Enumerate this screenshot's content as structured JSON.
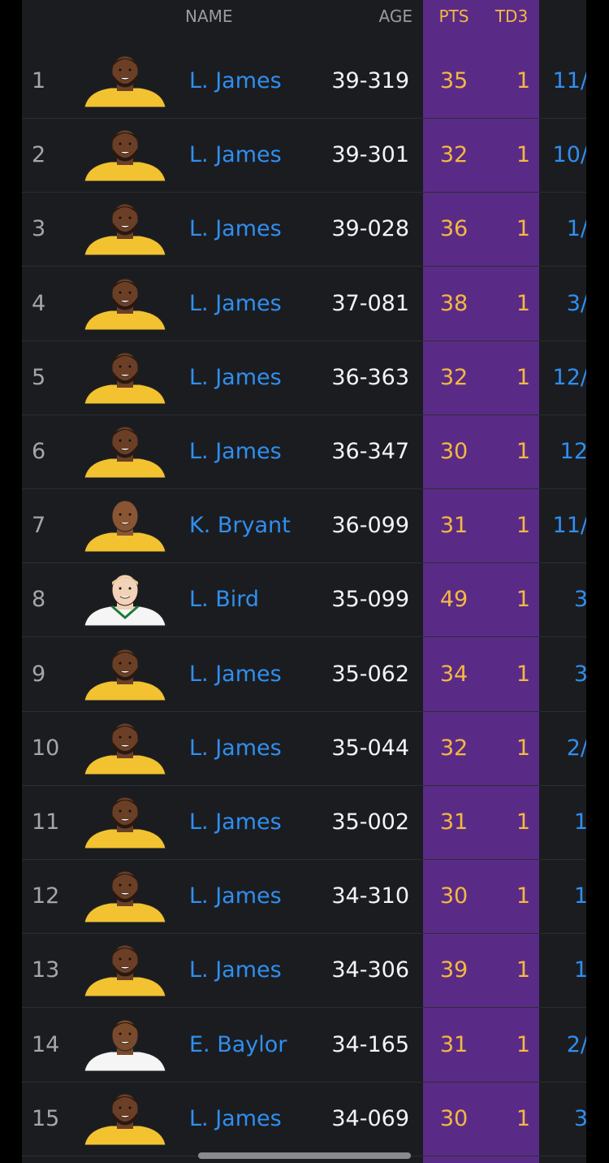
{
  "header": {
    "columns": [
      "NAME",
      "AGE",
      "PTS",
      "TD3"
    ]
  },
  "table": {
    "rows": [
      [
        1,
        "L. James",
        "39-319",
        35,
        1,
        "11/"
      ],
      [
        2,
        "L. James",
        "39-301",
        32,
        1,
        "10/"
      ],
      [
        3,
        "L. James",
        "39-028",
        36,
        1,
        "1/"
      ],
      [
        4,
        "L. James",
        "37-081",
        38,
        1,
        "3/"
      ],
      [
        5,
        "L. James",
        "36-363",
        32,
        1,
        "12/"
      ],
      [
        6,
        "L. James",
        "36-347",
        30,
        1,
        "12"
      ],
      [
        7,
        "K. Bryant",
        "36-099",
        31,
        1,
        "11/"
      ],
      [
        8,
        "L. Bird",
        "35-099",
        49,
        1,
        "3"
      ],
      [
        9,
        "L. James",
        "35-062",
        34,
        1,
        "3"
      ],
      [
        10,
        "L. James",
        "35-044",
        32,
        1,
        "2/"
      ],
      [
        11,
        "L. James",
        "35-002",
        31,
        1,
        "1"
      ],
      [
        12,
        "L. James",
        "34-310",
        30,
        1,
        "1"
      ],
      [
        13,
        "L. James",
        "34-306",
        39,
        1,
        "1"
      ],
      [
        14,
        "E. Baylor",
        "34-165",
        31,
        1,
        "2/"
      ],
      [
        15,
        "L. James",
        "34-069",
        30,
        1,
        "3"
      ]
    ]
  }
}
